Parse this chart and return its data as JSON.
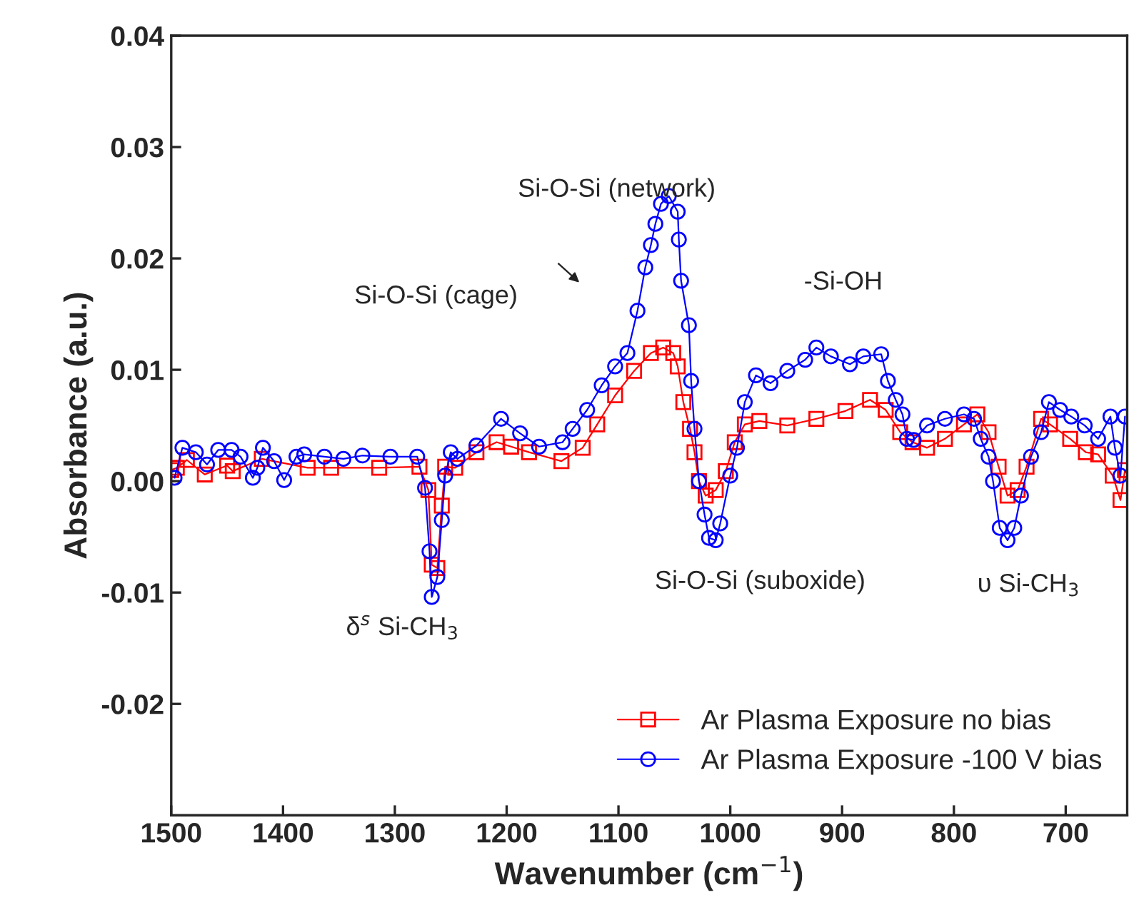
{
  "chart_data": {
    "type": "line",
    "xlabel": "Wavenumber (cm$^{−1}$)",
    "ylabel": "Absorbance (a.u.)",
    "xlim": [
      1500,
      645
    ],
    "xticks": [
      1500,
      1400,
      1300,
      1200,
      1100,
      1000,
      900,
      800,
      700
    ],
    "ylim": [
      -0.03,
      0.04
    ],
    "yticks": [
      {
        "value": -0.02,
        "label": "-0.02"
      },
      {
        "value": -0.01,
        "label": "-0.01"
      },
      {
        "value": 0,
        "label": "0.00"
      },
      {
        "value": 0.01,
        "label": "0.01"
      },
      {
        "value": 0.02,
        "label": "0.02"
      },
      {
        "value": 0.03,
        "label": "0.03"
      },
      {
        "value": 0.04,
        "label": "0.04"
      }
    ],
    "legend": "bottom right",
    "grid": false,
    "line_style": "solid",
    "series": [
      {
        "name": "Ar Plasma Exposure no bias",
        "color": "#ff0000",
        "marker": "square",
        "x": [
          1500,
          1495,
          1486,
          1470,
          1450,
          1445,
          1419,
          1378,
          1357,
          1314,
          1278,
          1270,
          1267,
          1262,
          1258,
          1255,
          1246,
          1227,
          1209,
          1196,
          1180,
          1151,
          1132,
          1119,
          1103,
          1086,
          1071,
          1060,
          1051,
          1047,
          1042,
          1036,
          1032,
          1028,
          1022,
          1013,
          1004,
          996,
          987,
          974,
          949,
          923,
          897,
          875,
          861,
          848,
          837,
          824,
          808,
          791,
          779,
          769,
          760,
          752,
          743,
          735,
          722,
          714,
          696,
          682,
          671,
          658,
          651,
          647
        ],
        "values": [
          0.001,
          0.0012,
          0.0019,
          0.0006,
          0.0014,
          0.0009,
          0.002,
          0.0012,
          0.0012,
          0.0012,
          0.0013,
          -0.0008,
          -0.0075,
          -0.0078,
          -0.0022,
          0.0013,
          0.0012,
          0.0026,
          0.0035,
          0.0031,
          0.0026,
          0.0018,
          0.003,
          0.0051,
          0.0077,
          0.0099,
          0.0115,
          0.012,
          0.0115,
          0.0103,
          0.0071,
          0.0047,
          0.0026,
          0.0,
          -0.0013,
          -0.0008,
          0.0009,
          0.0035,
          0.0051,
          0.0054,
          0.005,
          0.0056,
          0.0063,
          0.0073,
          0.0064,
          0.0044,
          0.0035,
          0.003,
          0.0038,
          0.0051,
          0.006,
          0.0044,
          0.0013,
          -0.0013,
          -0.0008,
          0.0013,
          0.0056,
          0.0051,
          0.0038,
          0.0026,
          0.0024,
          0.0005,
          -0.0017,
          0.001
        ]
      },
      {
        "name": "Ar Plasma Exposure -100 V bias",
        "color": "#0000ff",
        "marker": "circle",
        "x": [
          1497,
          1490,
          1478,
          1468,
          1458,
          1446,
          1438,
          1427,
          1423,
          1418,
          1408,
          1399,
          1388,
          1381,
          1363,
          1346,
          1329,
          1304,
          1280,
          1273,
          1269,
          1267,
          1262,
          1258,
          1255,
          1250,
          1244,
          1227,
          1205,
          1188,
          1171,
          1150,
          1141,
          1128,
          1115,
          1103,
          1092,
          1083,
          1076,
          1071,
          1067,
          1062,
          1055,
          1047,
          1046,
          1044,
          1037,
          1035,
          1032,
          1028,
          1023,
          1019,
          1013,
          1009,
          1000,
          994,
          987,
          977,
          964,
          949,
          933,
          923,
          910,
          893,
          881,
          865,
          859,
          852,
          846,
          842,
          836,
          824,
          808,
          791,
          782,
          776,
          769,
          765,
          759,
          752,
          746,
          740,
          731,
          722,
          715,
          705,
          695,
          683,
          671,
          660,
          656,
          651,
          647
        ],
        "values": [
          0.0003,
          0.003,
          0.0026,
          0.0015,
          0.0028,
          0.0028,
          0.0022,
          0.0003,
          0.0012,
          0.003,
          0.0018,
          0.0001,
          0.0022,
          0.0024,
          0.0022,
          0.002,
          0.0023,
          0.0022,
          0.0022,
          -0.0006,
          -0.0063,
          -0.0104,
          -0.0086,
          -0.0035,
          0.0005,
          0.0026,
          0.002,
          0.0032,
          0.0056,
          0.0043,
          0.0031,
          0.0035,
          0.0047,
          0.0064,
          0.0086,
          0.0103,
          0.0115,
          0.0153,
          0.0192,
          0.0212,
          0.0231,
          0.0249,
          0.0256,
          0.0242,
          0.0217,
          0.018,
          0.014,
          0.009,
          0.0047,
          0.0,
          -0.003,
          -0.0051,
          -0.0053,
          -0.0038,
          0.0005,
          0.003,
          0.0071,
          0.0095,
          0.0088,
          0.0099,
          0.0109,
          0.012,
          0.0112,
          0.0105,
          0.0112,
          0.0114,
          0.009,
          0.0073,
          0.006,
          0.0038,
          0.0037,
          0.005,
          0.0056,
          0.006,
          0.0056,
          0.0038,
          0.0022,
          0.0,
          -0.0042,
          -0.0053,
          -0.0042,
          -0.0013,
          0.0022,
          0.0044,
          0.0071,
          0.0064,
          0.0058,
          0.005,
          0.0038,
          0.0058,
          0.003,
          0.0005,
          0.0058
        ]
      }
    ],
    "annotations": [
      "Si-O-Si (network)",
      "Si-O-Si (cage)",
      "-Si-OH",
      "Si-O-Si (suboxide)",
      "δ$^{s}$ Si-CH$_{3}$",
      "υ Si-CH$_{3}$"
    ]
  }
}
